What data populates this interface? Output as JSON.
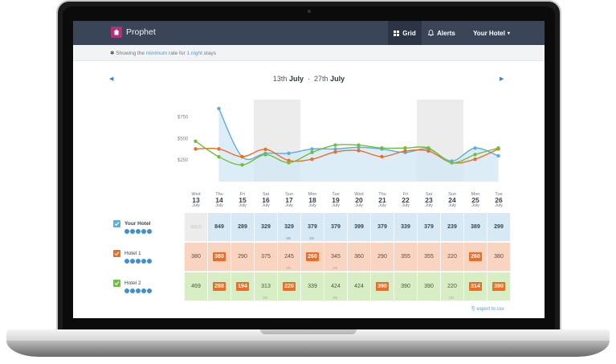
{
  "app": {
    "title": "Prophet"
  },
  "nav": {
    "grid_label": "Grid",
    "alerts_label": "Alerts",
    "hotel_label": "Your Hotel"
  },
  "info": {
    "prefix": "Showing the",
    "rate_type": "minimum",
    "middle": "rate for",
    "nights": "1 night",
    "suffix": "stays"
  },
  "date_range": {
    "start": "13th",
    "start_month": "July",
    "sep": "·",
    "end": "27th",
    "end_month": "July"
  },
  "chart_data": {
    "type": "line",
    "title": "",
    "y_ticks": [
      "$750",
      "$500",
      "$250"
    ],
    "ylim": [
      0,
      1000
    ],
    "categories": [
      "13",
      "14",
      "15",
      "16",
      "17",
      "18",
      "19",
      "20",
      "21",
      "22",
      "23",
      "24",
      "25",
      "26"
    ],
    "weekend_shading": [
      [
        16,
        17
      ],
      [
        23,
        24
      ]
    ],
    "series": [
      {
        "name": "Your Hotel",
        "color": "#5aaee0",
        "values": [
          null,
          849,
          289,
          329,
          329,
          379,
          379,
          399,
          379,
          339,
          379,
          239,
          389,
          299
        ]
      },
      {
        "name": "Hotel 1",
        "color": "#ee6c24",
        "values": [
          380,
          380,
          290,
          375,
          245,
          260,
          345,
          360,
          290,
          355,
          355,
          220,
          260,
          380
        ]
      },
      {
        "name": "Hotel 2",
        "color": "#6fbf3a",
        "values": [
          469,
          288,
          194,
          313,
          220,
          339,
          424,
          424,
          390,
          390,
          390,
          220,
          314,
          390
        ]
      }
    ]
  },
  "table": {
    "columns": [
      {
        "day": "Wed",
        "num": "13",
        "mon": "July"
      },
      {
        "day": "Thu",
        "num": "14",
        "mon": "July"
      },
      {
        "day": "Fri",
        "num": "15",
        "mon": "July"
      },
      {
        "day": "Sat",
        "num": "16",
        "mon": "July"
      },
      {
        "day": "Sun",
        "num": "17",
        "mon": "July"
      },
      {
        "day": "Mon",
        "num": "18",
        "mon": "July"
      },
      {
        "day": "Tue",
        "num": "19",
        "mon": "July"
      },
      {
        "day": "Wed",
        "num": "20",
        "mon": "July"
      },
      {
        "day": "Thu",
        "num": "21",
        "mon": "July"
      },
      {
        "day": "Fri",
        "num": "22",
        "mon": "July"
      },
      {
        "day": "Sat",
        "num": "23",
        "mon": "July"
      },
      {
        "day": "Sun",
        "num": "24",
        "mon": "July"
      },
      {
        "day": "Mon",
        "num": "25",
        "mon": "July"
      },
      {
        "day": "Tue",
        "num": "26",
        "mon": "July"
      }
    ],
    "rows": [
      {
        "name": "Your Hotel",
        "check_color": "#5aaee0",
        "cls": "row-your",
        "cells": [
          {
            "v": "SOLD",
            "sold": true
          },
          {
            "v": "849"
          },
          {
            "v": "289"
          },
          {
            "v": "329"
          },
          {
            "v": "329",
            "sub": "2N"
          },
          {
            "v": "379",
            "sub": "2N"
          },
          {
            "v": "379"
          },
          {
            "v": "399"
          },
          {
            "v": "379"
          },
          {
            "v": "339"
          },
          {
            "v": "379"
          },
          {
            "v": "239"
          },
          {
            "v": "389"
          },
          {
            "v": "299"
          }
        ]
      },
      {
        "name": "Hotel 1",
        "check_color": "#ee6c24",
        "cls": "row-h1",
        "cells": [
          {
            "v": "380"
          },
          {
            "v": "380",
            "hl": true
          },
          {
            "v": "290"
          },
          {
            "v": "375"
          },
          {
            "v": "245",
            "sub": "2N"
          },
          {
            "v": "260",
            "hl": true
          },
          {
            "v": "345",
            "sub": "2N"
          },
          {
            "v": "360"
          },
          {
            "v": "290"
          },
          {
            "v": "355"
          },
          {
            "v": "355"
          },
          {
            "v": "220"
          },
          {
            "v": "260",
            "hl": true
          },
          {
            "v": "380"
          }
        ]
      },
      {
        "name": "Hotel 2",
        "check_color": "#6fbf3a",
        "cls": "row-h2",
        "cells": [
          {
            "v": "469"
          },
          {
            "v": "288",
            "hl": true
          },
          {
            "v": "194",
            "hl": true
          },
          {
            "v": "313",
            "sub": "2N"
          },
          {
            "v": "220",
            "hl": true
          },
          {
            "v": "339"
          },
          {
            "v": "424",
            "sub": "2N"
          },
          {
            "v": "424"
          },
          {
            "v": "390",
            "hl": true
          },
          {
            "v": "390"
          },
          {
            "v": "390"
          },
          {
            "v": "220",
            "sub": "2N"
          },
          {
            "v": "314",
            "hl": true
          },
          {
            "v": "390",
            "hl": true
          }
        ]
      }
    ]
  },
  "stars_count": 5,
  "export_label": "export to csv"
}
